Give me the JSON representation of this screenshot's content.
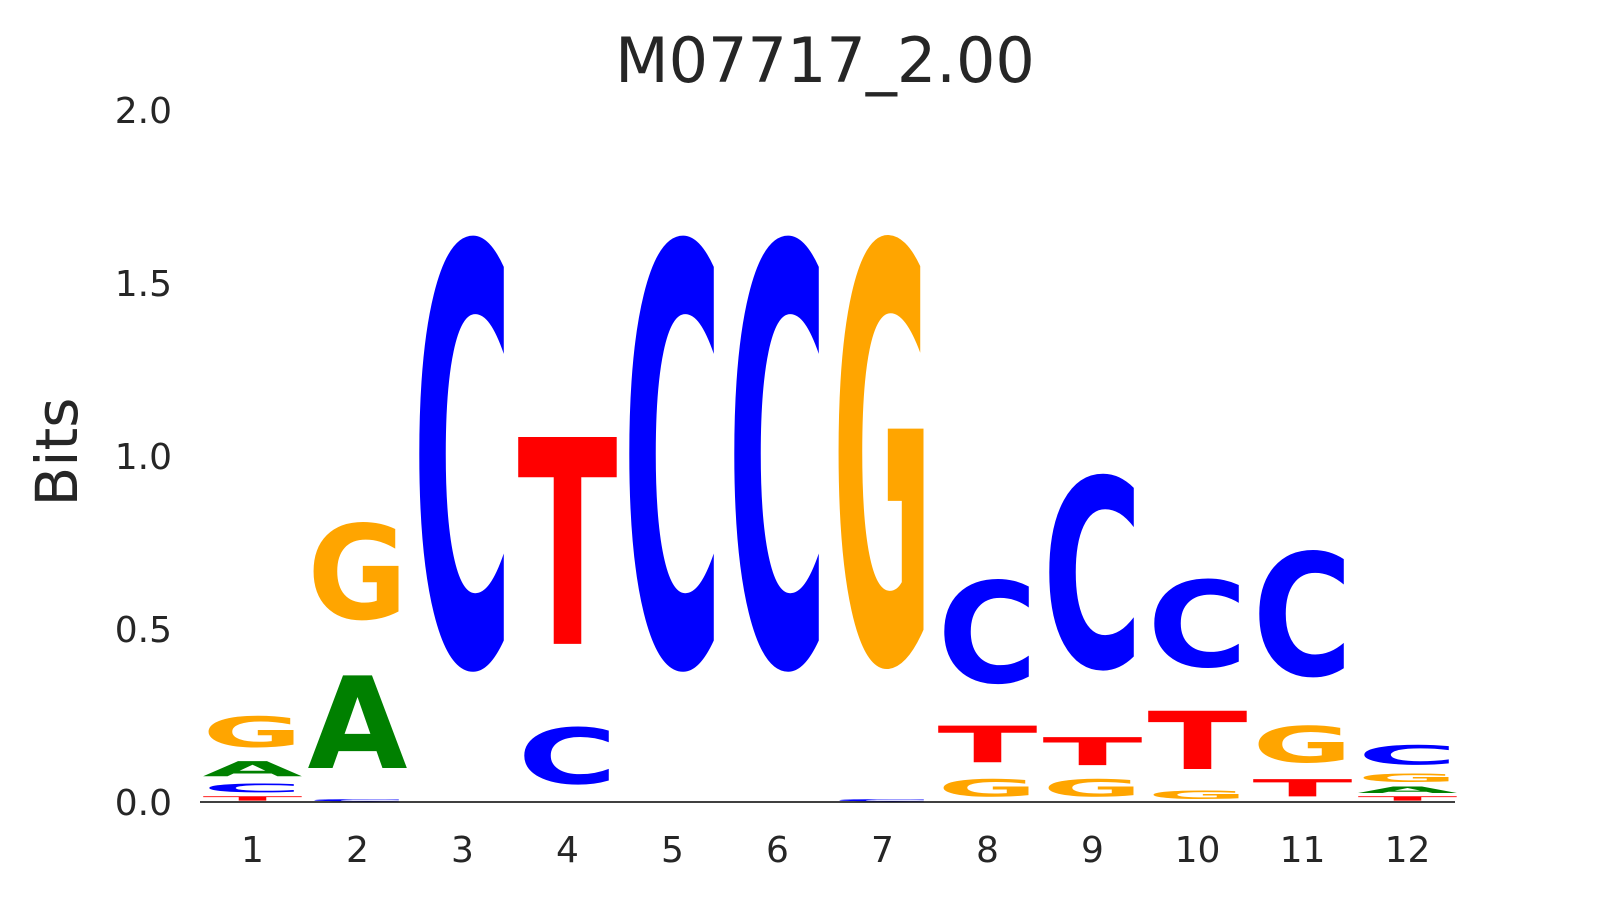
{
  "chart_data": {
    "type": "sequence-logo",
    "title": "M07717_2.00",
    "ylabel": "Bits",
    "ylim": [
      0,
      2
    ],
    "yticks": [
      "0.0",
      "0.5",
      "1.0",
      "1.5",
      "2.0"
    ],
    "positions": [
      "1",
      "2",
      "3",
      "4",
      "5",
      "6",
      "7",
      "8",
      "9",
      "10",
      "11",
      "12"
    ],
    "colors": {
      "A": "#008000",
      "C": "#0000ff",
      "G": "#ffa500",
      "T": "#ff0000"
    },
    "stacks": [
      [
        {
          "letter": "T",
          "bits": 0.02
        },
        {
          "letter": "C",
          "bits": 0.04
        },
        {
          "letter": "A",
          "bits": 0.07
        },
        {
          "letter": "G",
          "bits": 0.14
        }
      ],
      [
        {
          "letter": "C",
          "bits": 0.01
        },
        {
          "letter": "A",
          "bits": 0.43
        },
        {
          "letter": "G",
          "bits": 0.44
        }
      ],
      [
        {
          "letter": "C",
          "bits": 1.95
        }
      ],
      [
        {
          "letter": "C",
          "bits": 0.26
        },
        {
          "letter": "T",
          "bits": 0.96
        }
      ],
      [
        {
          "letter": "C",
          "bits": 1.95
        }
      ],
      [
        {
          "letter": "C",
          "bits": 1.95
        }
      ],
      [
        {
          "letter": "C",
          "bits": 0.01
        },
        {
          "letter": "G",
          "bits": 1.94
        }
      ],
      [
        {
          "letter": "G",
          "bits": 0.08
        },
        {
          "letter": "T",
          "bits": 0.17
        },
        {
          "letter": "C",
          "bits": 0.47
        }
      ],
      [
        {
          "letter": "G",
          "bits": 0.08
        },
        {
          "letter": "T",
          "bits": 0.13
        },
        {
          "letter": "C",
          "bits": 0.88
        }
      ],
      [
        {
          "letter": "G",
          "bits": 0.04
        },
        {
          "letter": "T",
          "bits": 0.27
        },
        {
          "letter": "C",
          "bits": 0.4
        }
      ],
      [
        {
          "letter": "T",
          "bits": 0.08
        },
        {
          "letter": "G",
          "bits": 0.17
        },
        {
          "letter": "C",
          "bits": 0.57
        }
      ],
      [
        {
          "letter": "T",
          "bits": 0.02
        },
        {
          "letter": "A",
          "bits": 0.03
        },
        {
          "letter": "G",
          "bits": 0.04
        },
        {
          "letter": "C",
          "bits": 0.09
        }
      ]
    ]
  }
}
